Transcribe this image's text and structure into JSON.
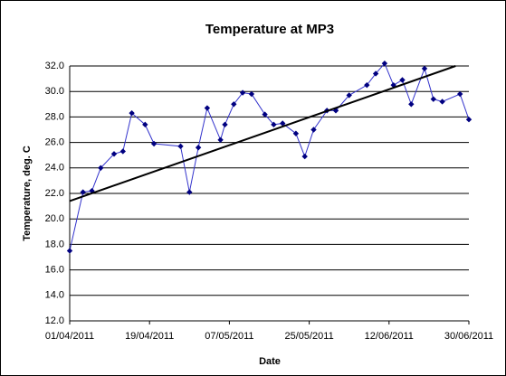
{
  "chart_data": {
    "type": "line",
    "title": "Temperature at MP3",
    "x_label": "Date",
    "y_label": "Temperature, deg. C",
    "x": [
      "01/04/2011",
      "04/04/2011",
      "06/04/2011",
      "08/04/2011",
      "11/04/2011",
      "13/04/2011",
      "15/04/2011",
      "18/04/2011",
      "20/04/2011",
      "26/04/2011",
      "28/04/2011",
      "30/04/2011",
      "02/05/2011",
      "05/05/2011",
      "06/05/2011",
      "08/05/2011",
      "10/05/2011",
      "12/05/2011",
      "15/05/2011",
      "17/05/2011",
      "19/05/2011",
      "22/05/2011",
      "24/05/2011",
      "26/05/2011",
      "29/05/2011",
      "31/05/2011",
      "03/06/2011",
      "07/06/2011",
      "09/06/2011",
      "11/06/2011",
      "13/06/2011",
      "15/06/2011",
      "17/06/2011",
      "20/06/2011",
      "22/06/2011",
      "24/06/2011",
      "28/06/2011",
      "30/06/2011"
    ],
    "series": [
      {
        "color": "#000080",
        "values": [
          17.5,
          22.1,
          22.2,
          24.0,
          25.1,
          25.3,
          28.3,
          27.4,
          25.9,
          25.7,
          22.1,
          25.6,
          28.7,
          26.2,
          27.4,
          29.0,
          29.9,
          29.8,
          28.2,
          27.4,
          27.5,
          26.7,
          24.9,
          27.0,
          28.5,
          28.5,
          29.7,
          30.5,
          31.4,
          32.2,
          30.5,
          30.9,
          29.0,
          31.8,
          29.4,
          29.2,
          29.8,
          27.8
        ]
      }
    ],
    "trendline": {
      "color": "#000000",
      "x": [
        "01/04/2011",
        "27/06/2011"
      ],
      "values": [
        21.4,
        32.0
      ]
    },
    "xlim": [
      "01/04/2011",
      "30/06/2011"
    ],
    "xticks": [
      "01/04/2011",
      "19/04/2011",
      "07/05/2011",
      "25/05/2011",
      "12/06/2011",
      "30/06/2011"
    ],
    "ylim": [
      12,
      32
    ],
    "yticks": [
      {
        "value": 12,
        "label": "12.0"
      },
      {
        "value": 14,
        "label": "14.0"
      },
      {
        "value": 16,
        "label": "16.0"
      },
      {
        "value": 18,
        "label": "18.0"
      },
      {
        "value": 20,
        "label": "20.0"
      },
      {
        "value": 22,
        "label": "22.0"
      },
      {
        "value": 24,
        "label": "24.0"
      },
      {
        "value": 26,
        "label": "26.0"
      },
      {
        "value": 28,
        "label": "28.0"
      },
      {
        "value": 30,
        "label": "30.0"
      },
      {
        "value": 32,
        "label": "32.0"
      }
    ],
    "grid": true
  }
}
